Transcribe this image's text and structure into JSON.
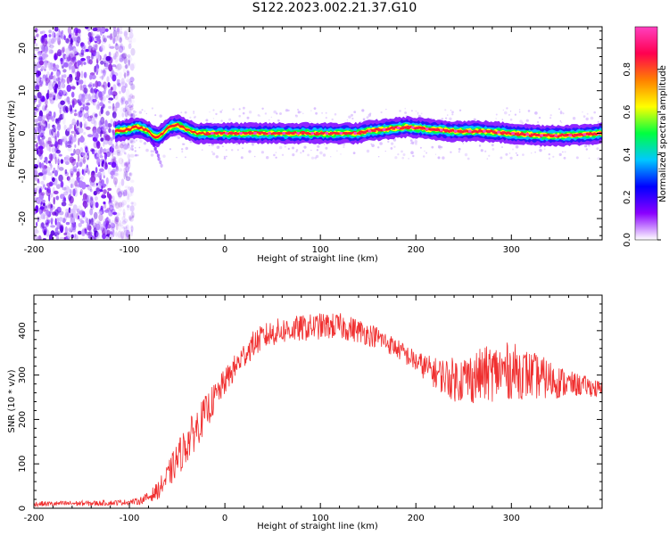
{
  "title": "S122.2023.002.21.37.G10",
  "chart_data": [
    {
      "type": "heatmap",
      "xlabel": "Height of straight line (km)",
      "ylabel": "Frequency (Hz)",
      "xlim": [
        -200,
        395
      ],
      "ylim": [
        -25,
        25
      ],
      "xticks": [
        -200,
        -100,
        0,
        100,
        200,
        300
      ],
      "yticks": [
        -20,
        -10,
        0,
        10,
        20
      ],
      "colorbar": {
        "label": "Normalized spectral amplitude",
        "range": [
          0.0,
          1.0
        ],
        "ticks": [
          0.0,
          0.2,
          0.4,
          0.6,
          0.8
        ],
        "tick_labels": [
          "0.0",
          "0.2",
          "0.4",
          "0.6",
          "0.8"
        ],
        "colors": [
          "#ffffff",
          "#8a00ff",
          "#0000ff",
          "#00c8ff",
          "#00ff40",
          "#ffff00",
          "#ff8000",
          "#ff0050",
          "#ff40c0"
        ]
      },
      "ridge": {
        "x": [
          -115,
          -100,
          -90,
          -80,
          -72,
          -65,
          -58,
          -50,
          -40,
          -30,
          -10,
          0,
          20,
          50,
          80,
          100,
          140,
          150,
          170,
          190,
          210,
          240,
          270,
          300,
          330,
          360,
          395
        ],
        "freq": [
          0.5,
          1.0,
          1.5,
          0.5,
          -1.0,
          0.0,
          1.5,
          2.0,
          1.0,
          0.0,
          0.0,
          0.0,
          0.0,
          0.0,
          0.0,
          0.0,
          0.0,
          0.5,
          1.0,
          1.5,
          1.0,
          0.5,
          0.5,
          0.0,
          -0.5,
          -0.5,
          0.0
        ]
      },
      "noise_region_x": [
        -200,
        -105
      ]
    },
    {
      "type": "line",
      "xlabel": "Height of straight line (km)",
      "ylabel": "SNR (10 * v/v)",
      "xlim": [
        -200,
        395
      ],
      "ylim": [
        0,
        480
      ],
      "xticks": [
        -200,
        -100,
        0,
        100,
        200,
        300
      ],
      "yticks": [
        0,
        100,
        200,
        300,
        400
      ],
      "color": "#f03030",
      "series": [
        {
          "x": [
            -200,
            -180,
            -160,
            -140,
            -120,
            -100,
            -90,
            -80,
            -70,
            -60,
            -50,
            -40,
            -30,
            -20,
            -10,
            0,
            10,
            20,
            30,
            40,
            50,
            60,
            80,
            100,
            120,
            140,
            160,
            180,
            200,
            220,
            240,
            260,
            280,
            300,
            320,
            340,
            360,
            380,
            395
          ],
          "values": [
            10,
            10,
            11,
            11,
            12,
            14,
            16,
            25,
            40,
            70,
            110,
            145,
            180,
            215,
            250,
            285,
            315,
            345,
            370,
            385,
            395,
            400,
            405,
            410,
            410,
            400,
            385,
            360,
            330,
            305,
            290,
            295,
            305,
            310,
            300,
            290,
            280,
            275,
            265
          ],
          "noise_amplitude": [
            6,
            6,
            6,
            6,
            6,
            6,
            8,
            12,
            20,
            30,
            40,
            45,
            45,
            40,
            35,
            30,
            30,
            30,
            30,
            30,
            30,
            30,
            30,
            30,
            30,
            28,
            25,
            22,
            25,
            35,
            50,
            60,
            65,
            65,
            55,
            45,
            30,
            22,
            20
          ]
        }
      ]
    }
  ]
}
